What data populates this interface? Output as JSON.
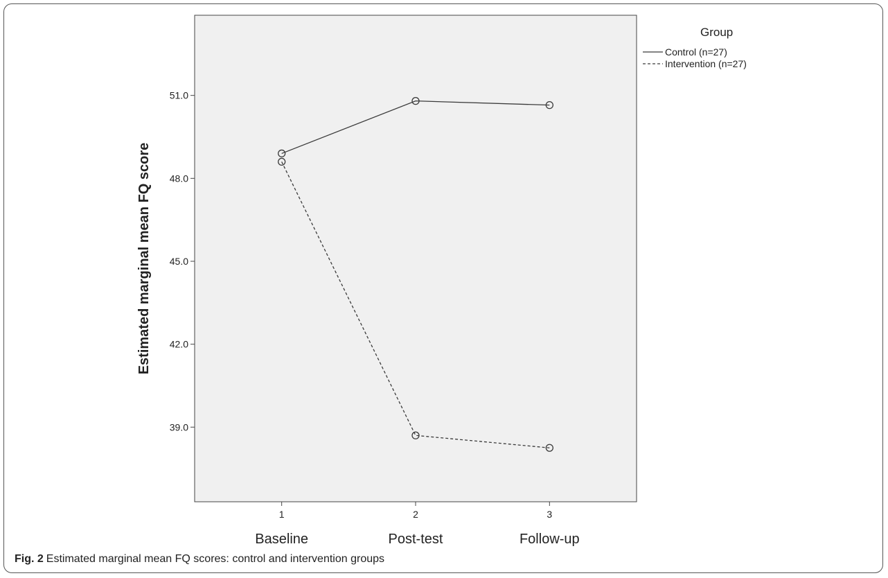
{
  "chart_data": {
    "type": "line",
    "title": "",
    "xlabel": "",
    "ylabel": "Estimated marginal mean FQ score",
    "x": [
      1,
      2,
      3
    ],
    "x_tick_labels": [
      "1",
      "2",
      "3"
    ],
    "x_category_labels": [
      "Baseline",
      "Post-test",
      "Follow-up"
    ],
    "y_ticks": [
      "39.0",
      "42.0",
      "45.0",
      "48.0",
      "51.0"
    ],
    "y_tick_values": [
      39,
      42,
      45,
      48,
      51
    ],
    "ylim": [
      36.3,
      53.9
    ],
    "xlim": [
      0.35,
      3.65
    ],
    "series": [
      {
        "name": "Control (n=27)",
        "values": [
          48.9,
          50.8,
          50.65
        ],
        "line_style": "solid",
        "color": "#3a3a3a"
      },
      {
        "name": "Intervention (n=27)",
        "values": [
          48.6,
          38.7,
          38.25
        ],
        "line_style": "dashed",
        "color": "#3a3a3a"
      }
    ],
    "legend_title": "Group",
    "legend_position": "top-right",
    "grid": false,
    "plot_background": "#f0f0f0"
  },
  "caption": {
    "label": "Fig. 2",
    "text": "Estimated marginal mean FQ scores: control and intervention groups"
  }
}
